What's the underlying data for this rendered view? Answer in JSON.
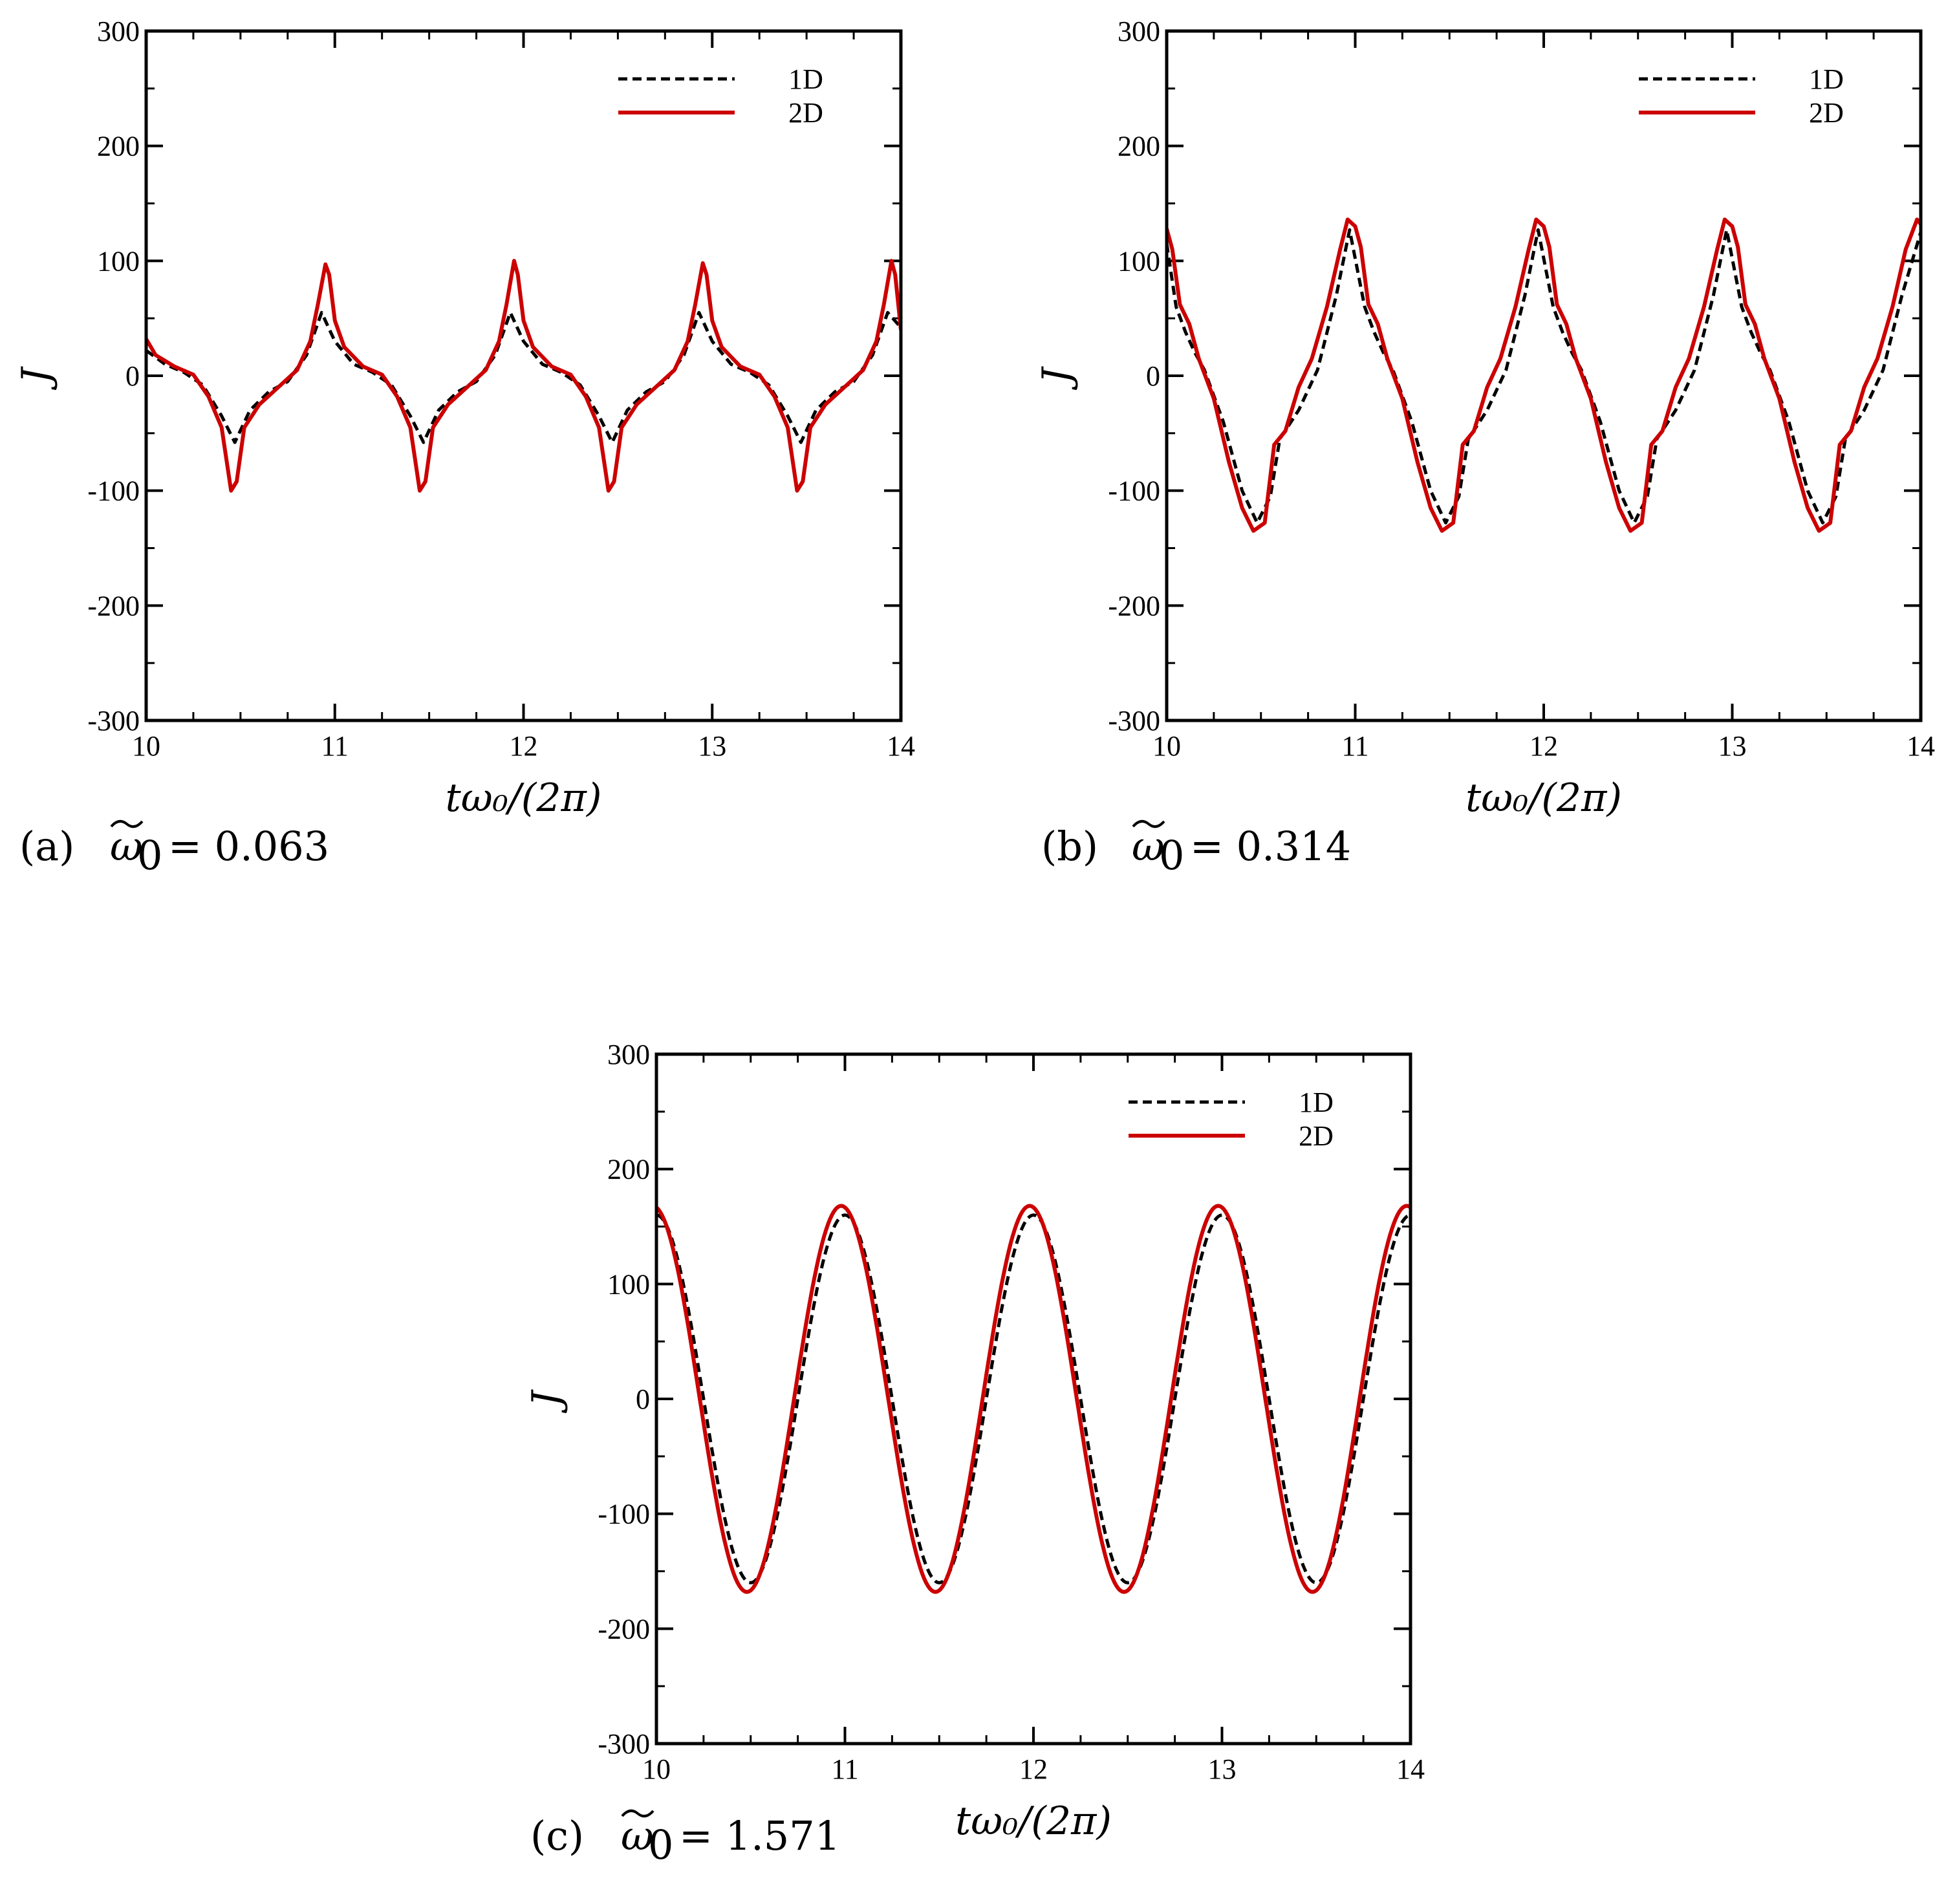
{
  "chart_data": [
    {
      "type": "line",
      "caption_prefix": "(a)",
      "caption_value": "= 0.063",
      "xlabel": "tω₀/(2π)",
      "ylabel": "J",
      "xlim": [
        10,
        14
      ],
      "ylim": [
        -300,
        300
      ],
      "x_ticks": [
        "10",
        "11",
        "12",
        "13",
        "14"
      ],
      "y_ticks": [
        "300",
        "200",
        "100",
        "0",
        "-100",
        "-200",
        "-300"
      ],
      "legend_position": "top-right",
      "series": [
        {
          "name": "1D",
          "style": "dashed",
          "color": "#000000",
          "points": [
            [
              10.0,
              22
            ],
            [
              10.1,
              10
            ],
            [
              10.2,
              3
            ],
            [
              10.3,
              -8
            ],
            [
              10.4,
              -35
            ],
            [
              10.47,
              -58
            ],
            [
              10.55,
              -30
            ],
            [
              10.65,
              -14
            ],
            [
              10.75,
              -5
            ],
            [
              10.85,
              18
            ],
            [
              10.93,
              55
            ],
            [
              11.0,
              30
            ],
            [
              11.1,
              10
            ],
            [
              11.2,
              3
            ],
            [
              11.3,
              -8
            ],
            [
              11.4,
              -35
            ],
            [
              11.47,
              -58
            ],
            [
              11.55,
              -30
            ],
            [
              11.65,
              -14
            ],
            [
              11.75,
              -5
            ],
            [
              11.85,
              18
            ],
            [
              11.93,
              55
            ],
            [
              12.0,
              30
            ],
            [
              12.1,
              10
            ],
            [
              12.2,
              3
            ],
            [
              12.3,
              -8
            ],
            [
              12.4,
              -35
            ],
            [
              12.47,
              -58
            ],
            [
              12.55,
              -30
            ],
            [
              12.65,
              -14
            ],
            [
              12.75,
              -5
            ],
            [
              12.85,
              18
            ],
            [
              12.93,
              55
            ],
            [
              13.0,
              30
            ],
            [
              13.1,
              10
            ],
            [
              13.2,
              3
            ],
            [
              13.3,
              -8
            ],
            [
              13.4,
              -35
            ],
            [
              13.47,
              -58
            ],
            [
              13.55,
              -30
            ],
            [
              13.65,
              -14
            ],
            [
              13.75,
              -5
            ],
            [
              13.85,
              18
            ],
            [
              13.93,
              55
            ],
            [
              14.0,
              42
            ]
          ]
        },
        {
          "name": "2D",
          "style": "solid",
          "color": "#cc0000",
          "points": [
            [
              10.0,
              32
            ],
            [
              10.05,
              18
            ],
            [
              10.15,
              8
            ],
            [
              10.25,
              1
            ],
            [
              10.33,
              -18
            ],
            [
              10.4,
              -45
            ],
            [
              10.45,
              -100
            ],
            [
              10.48,
              -92
            ],
            [
              10.52,
              -45
            ],
            [
              10.6,
              -25
            ],
            [
              10.7,
              -10
            ],
            [
              10.8,
              5
            ],
            [
              10.87,
              30
            ],
            [
              10.91,
              62
            ],
            [
              10.95,
              97
            ],
            [
              10.97,
              88
            ],
            [
              11.0,
              48
            ],
            [
              11.05,
              25
            ],
            [
              11.15,
              8
            ],
            [
              11.25,
              1
            ],
            [
              11.33,
              -18
            ],
            [
              11.4,
              -45
            ],
            [
              11.45,
              -100
            ],
            [
              11.48,
              -92
            ],
            [
              11.52,
              -45
            ],
            [
              11.6,
              -25
            ],
            [
              11.7,
              -10
            ],
            [
              11.8,
              5
            ],
            [
              11.87,
              30
            ],
            [
              11.91,
              62
            ],
            [
              11.95,
              100
            ],
            [
              11.97,
              88
            ],
            [
              12.0,
              48
            ],
            [
              12.05,
              25
            ],
            [
              12.15,
              8
            ],
            [
              12.25,
              1
            ],
            [
              12.33,
              -18
            ],
            [
              12.4,
              -45
            ],
            [
              12.45,
              -100
            ],
            [
              12.48,
              -92
            ],
            [
              12.52,
              -45
            ],
            [
              12.6,
              -25
            ],
            [
              12.7,
              -10
            ],
            [
              12.8,
              5
            ],
            [
              12.87,
              30
            ],
            [
              12.91,
              62
            ],
            [
              12.95,
              98
            ],
            [
              12.97,
              88
            ],
            [
              13.0,
              48
            ],
            [
              13.05,
              25
            ],
            [
              13.15,
              8
            ],
            [
              13.25,
              1
            ],
            [
              13.33,
              -18
            ],
            [
              13.4,
              -45
            ],
            [
              13.45,
              -100
            ],
            [
              13.48,
              -92
            ],
            [
              13.52,
              -45
            ],
            [
              13.6,
              -25
            ],
            [
              13.7,
              -10
            ],
            [
              13.8,
              5
            ],
            [
              13.87,
              30
            ],
            [
              13.91,
              62
            ],
            [
              13.95,
              100
            ],
            [
              13.97,
              88
            ],
            [
              14.0,
              40
            ]
          ]
        }
      ]
    },
    {
      "type": "line",
      "caption_prefix": "(b)",
      "caption_value": "= 0.314",
      "xlabel": "tω₀/(2π)",
      "ylabel": "J",
      "xlim": [
        10,
        14
      ],
      "ylim": [
        -300,
        300
      ],
      "x_ticks": [
        "10",
        "11",
        "12",
        "13",
        "14"
      ],
      "y_ticks": [
        "300",
        "200",
        "100",
        "0",
        "-100",
        "-200",
        "-300"
      ],
      "legend_position": "top-right",
      "series": [
        {
          "name": "1D",
          "style": "dashed",
          "color": "#000000",
          "points": [
            [
              10.0,
              115
            ],
            [
              10.05,
              60
            ],
            [
              10.1,
              38
            ],
            [
              10.15,
              20
            ],
            [
              10.2,
              5
            ],
            [
              10.3,
              -40
            ],
            [
              10.4,
              -100
            ],
            [
              10.48,
              -128
            ],
            [
              10.55,
              -105
            ],
            [
              10.6,
              -55
            ],
            [
              10.7,
              -30
            ],
            [
              10.8,
              5
            ],
            [
              10.9,
              70
            ],
            [
              10.97,
              127
            ],
            [
              11.05,
              60
            ],
            [
              11.1,
              38
            ],
            [
              11.15,
              20
            ],
            [
              11.2,
              5
            ],
            [
              11.3,
              -40
            ],
            [
              11.4,
              -100
            ],
            [
              11.48,
              -128
            ],
            [
              11.55,
              -105
            ],
            [
              11.6,
              -55
            ],
            [
              11.7,
              -30
            ],
            [
              11.8,
              5
            ],
            [
              11.9,
              70
            ],
            [
              11.97,
              127
            ],
            [
              12.05,
              60
            ],
            [
              12.1,
              38
            ],
            [
              12.15,
              20
            ],
            [
              12.2,
              5
            ],
            [
              12.3,
              -40
            ],
            [
              12.4,
              -100
            ],
            [
              12.48,
              -128
            ],
            [
              12.55,
              -105
            ],
            [
              12.6,
              -55
            ],
            [
              12.7,
              -30
            ],
            [
              12.8,
              5
            ],
            [
              12.9,
              70
            ],
            [
              12.97,
              127
            ],
            [
              13.05,
              60
            ],
            [
              13.1,
              38
            ],
            [
              13.15,
              20
            ],
            [
              13.2,
              5
            ],
            [
              13.3,
              -40
            ],
            [
              13.4,
              -100
            ],
            [
              13.48,
              -128
            ],
            [
              13.55,
              -105
            ],
            [
              13.6,
              -55
            ],
            [
              13.7,
              -30
            ],
            [
              13.8,
              5
            ],
            [
              13.9,
              70
            ],
            [
              14.0,
              125
            ]
          ]
        },
        {
          "name": "2D",
          "style": "solid",
          "color": "#cc0000",
          "points": [
            [
              10.0,
              128
            ],
            [
              10.03,
              110
            ],
            [
              10.07,
              62
            ],
            [
              10.12,
              45
            ],
            [
              10.17,
              15
            ],
            [
              10.25,
              -20
            ],
            [
              10.33,
              -75
            ],
            [
              10.4,
              -115
            ],
            [
              10.46,
              -135
            ],
            [
              10.52,
              -128
            ],
            [
              10.57,
              -60
            ],
            [
              10.63,
              -48
            ],
            [
              10.7,
              -10
            ],
            [
              10.77,
              15
            ],
            [
              10.85,
              60
            ],
            [
              10.92,
              110
            ],
            [
              10.96,
              136
            ],
            [
              11.0,
              130
            ],
            [
              11.03,
              112
            ],
            [
              11.07,
              62
            ],
            [
              11.12,
              45
            ],
            [
              11.17,
              15
            ],
            [
              11.25,
              -20
            ],
            [
              11.33,
              -75
            ],
            [
              11.4,
              -115
            ],
            [
              11.46,
              -135
            ],
            [
              11.52,
              -128
            ],
            [
              11.57,
              -60
            ],
            [
              11.63,
              -48
            ],
            [
              11.7,
              -10
            ],
            [
              11.77,
              15
            ],
            [
              11.85,
              60
            ],
            [
              11.92,
              110
            ],
            [
              11.96,
              136
            ],
            [
              12.0,
              130
            ],
            [
              12.03,
              112
            ],
            [
              12.07,
              62
            ],
            [
              12.12,
              45
            ],
            [
              12.17,
              15
            ],
            [
              12.25,
              -20
            ],
            [
              12.33,
              -75
            ],
            [
              12.4,
              -115
            ],
            [
              12.46,
              -135
            ],
            [
              12.52,
              -128
            ],
            [
              12.57,
              -60
            ],
            [
              12.63,
              -48
            ],
            [
              12.7,
              -10
            ],
            [
              12.77,
              15
            ],
            [
              12.85,
              60
            ],
            [
              12.92,
              110
            ],
            [
              12.96,
              136
            ],
            [
              13.0,
              130
            ],
            [
              13.03,
              112
            ],
            [
              13.07,
              62
            ],
            [
              13.12,
              45
            ],
            [
              13.17,
              15
            ],
            [
              13.25,
              -20
            ],
            [
              13.33,
              -75
            ],
            [
              13.4,
              -115
            ],
            [
              13.46,
              -135
            ],
            [
              13.52,
              -128
            ],
            [
              13.57,
              -60
            ],
            [
              13.63,
              -48
            ],
            [
              13.7,
              -10
            ],
            [
              13.77,
              15
            ],
            [
              13.85,
              60
            ],
            [
              13.92,
              110
            ],
            [
              13.98,
              136
            ],
            [
              14.0,
              132
            ]
          ]
        }
      ]
    },
    {
      "type": "line",
      "caption_prefix": "(c)",
      "caption_value": "= 1.571",
      "xlabel": "tω₀/(2π)",
      "ylabel": "J",
      "xlim": [
        10,
        14
      ],
      "ylim": [
        -300,
        300
      ],
      "x_ticks": [
        "10",
        "11",
        "12",
        "13",
        "14"
      ],
      "y_ticks": [
        "300",
        "200",
        "100",
        "0",
        "-100",
        "-200",
        "-300"
      ],
      "legend_position": "top-right",
      "series": [
        {
          "name": "1D",
          "style": "dashed",
          "color": "#000000",
          "amplitude": 160,
          "phase_offset": 0.0
        },
        {
          "name": "2D",
          "style": "solid",
          "color": "#cc0000",
          "amplitude": 168,
          "phase_offset": -0.02
        }
      ]
    }
  ]
}
